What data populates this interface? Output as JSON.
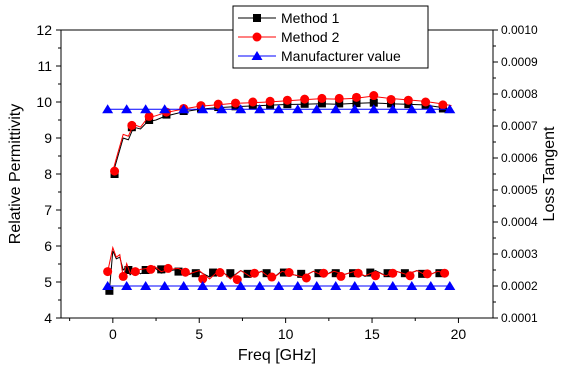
{
  "chart_data": {
    "type": "line",
    "xlabel": "Freq [GHz]",
    "ylabel": "Relative Permittivity",
    "y2label": "Loss Tangent",
    "xlim": [
      -3,
      22
    ],
    "ylim": [
      4,
      12
    ],
    "y2lim": [
      0.0001,
      0.001
    ],
    "x_ticks": [
      0,
      5,
      10,
      15,
      20
    ],
    "x_tick_labels": [
      "0",
      "5",
      "10",
      "15",
      "20"
    ],
    "y_ticks": [
      4,
      5,
      6,
      7,
      8,
      9,
      10,
      11,
      12
    ],
    "y_tick_labels": [
      "4",
      "5",
      "6",
      "7",
      "8",
      "9",
      "10",
      "11",
      "12"
    ],
    "y2_ticks": [
      0.0001,
      0.0002,
      0.0003,
      0.0004,
      0.0005,
      0.0006,
      0.0007,
      0.0008,
      0.0009,
      0.001
    ],
    "y2_tick_labels": [
      "0.0001",
      "0.0002",
      "0.0003",
      "0.0004",
      "0.0005",
      "0.0006",
      "0.0007",
      "0.0008",
      "0.0009",
      "0.0010"
    ],
    "legend_position": "top-right",
    "colors": {
      "method1": "#000000",
      "method2": "#ff0000",
      "manufacturer": "#0000ff"
    },
    "series": [
      {
        "name": "Method 1",
        "axis": "left",
        "color": "#000000",
        "marker": "square",
        "marker_x": [
          0.1,
          1.1,
          2.1,
          3.1,
          4.1,
          5.1,
          6.1,
          7.1,
          8.1,
          9.1,
          10.1,
          11.1,
          12.1,
          13.1,
          14.1,
          15.1,
          16.1,
          17.1,
          18.1,
          19.1
        ],
        "marker_y": [
          8.0,
          9.3,
          9.5,
          9.65,
          9.75,
          9.82,
          9.86,
          9.88,
          9.9,
          9.92,
          9.94,
          9.95,
          9.96,
          9.96,
          9.97,
          9.98,
          9.96,
          9.94,
          9.92,
          9.82
        ],
        "line_x": [
          0.0,
          0.3,
          0.6,
          0.9,
          1.2,
          1.6,
          2.0,
          2.5,
          3.0,
          4.0,
          5.0,
          6.0,
          7.0,
          8.0,
          9.0,
          10.0,
          11.0,
          12.0,
          13.0,
          14.0,
          15.0,
          16.0,
          17.0,
          18.0,
          19.0,
          19.6
        ],
        "line_y": [
          8.0,
          8.5,
          9.0,
          8.95,
          9.3,
          9.25,
          9.45,
          9.5,
          9.6,
          9.72,
          9.8,
          9.84,
          9.87,
          9.89,
          9.91,
          9.93,
          9.94,
          9.95,
          9.94,
          9.96,
          9.98,
          9.95,
          9.94,
          9.92,
          9.85,
          9.78
        ]
      },
      {
        "name": "Method 2",
        "axis": "left",
        "color": "#ff0000",
        "marker": "circle",
        "marker_x": [
          0.1,
          1.1,
          2.1,
          3.1,
          4.1,
          5.1,
          6.1,
          7.1,
          8.1,
          9.1,
          10.1,
          11.1,
          12.1,
          13.1,
          14.1,
          15.1,
          16.1,
          17.1,
          18.1,
          19.1
        ],
        "marker_y": [
          8.08,
          9.35,
          9.6,
          9.72,
          9.82,
          9.9,
          9.94,
          9.97,
          10.0,
          10.02,
          10.05,
          10.08,
          10.1,
          10.1,
          10.13,
          10.18,
          10.07,
          10.05,
          10.0,
          9.92
        ],
        "line_x": [
          0.0,
          0.3,
          0.6,
          0.9,
          1.2,
          1.6,
          2.0,
          2.5,
          3.0,
          4.0,
          5.0,
          6.0,
          7.0,
          8.0,
          9.0,
          10.0,
          11.0,
          12.0,
          13.0,
          14.0,
          15.0,
          16.0,
          17.0,
          18.0,
          19.0,
          19.6
        ],
        "line_y": [
          8.08,
          8.6,
          9.1,
          9.05,
          9.38,
          9.3,
          9.55,
          9.62,
          9.7,
          9.8,
          9.88,
          9.92,
          9.96,
          9.98,
          10.0,
          10.03,
          10.06,
          10.09,
          10.08,
          10.1,
          10.16,
          10.1,
          10.06,
          10.02,
          9.95,
          9.9
        ]
      },
      {
        "name": "Manufacturer value",
        "axis": "left",
        "color": "#0000ff",
        "marker": "triangle",
        "marker_x": [
          -0.3,
          0.8,
          1.9,
          3.0,
          4.1,
          5.2,
          6.3,
          7.4,
          8.5,
          9.6,
          10.7,
          11.8,
          12.9,
          14.0,
          15.1,
          16.2,
          17.3,
          18.4,
          19.5
        ],
        "marker_y": [
          9.8,
          9.8,
          9.8,
          9.8,
          9.8,
          9.8,
          9.8,
          9.8,
          9.8,
          9.8,
          9.8,
          9.8,
          9.8,
          9.8,
          9.8,
          9.8,
          9.8,
          9.8,
          9.8
        ],
        "line_x": [
          -0.3,
          19.6
        ],
        "line_y": [
          9.8,
          9.8
        ]
      },
      {
        "name": "Method 1",
        "axis": "right",
        "color": "#000000",
        "marker": "square",
        "marker_x": [
          -0.2,
          0.9,
          1.9,
          2.8,
          3.8,
          4.8,
          5.8,
          6.8,
          7.8,
          8.9,
          9.9,
          10.9,
          11.9,
          12.9,
          13.9,
          14.9,
          15.9,
          16.9,
          17.9,
          18.9
        ],
        "marker_y": [
          0.000185,
          0.00025,
          0.00025,
          0.000252,
          0.000245,
          0.00024,
          0.000242,
          0.00024,
          0.000238,
          0.00024,
          0.000242,
          0.000238,
          0.00024,
          0.00024,
          0.00024,
          0.000242,
          0.00024,
          0.00024,
          0.000238,
          0.00024
        ],
        "line_x": [
          -0.2,
          0.0,
          0.2,
          0.4,
          0.6,
          0.8,
          1.0,
          1.3,
          1.6,
          2.0,
          2.4,
          2.8,
          3.3,
          3.8,
          4.4,
          5.0,
          5.6,
          6.2,
          6.8,
          7.4,
          8.0,
          8.6,
          9.2,
          9.8,
          10.4,
          11.0,
          11.6,
          12.2,
          12.8,
          13.4,
          14.0,
          14.6,
          15.2,
          15.8,
          16.4,
          17.0,
          17.6,
          18.2,
          18.8,
          19.4
        ],
        "line_y": [
          0.000185,
          0.00031,
          0.000285,
          0.00029,
          0.00025,
          0.00026,
          0.000235,
          0.00025,
          0.000238,
          0.00025,
          0.000258,
          0.00024,
          0.000248,
          0.000252,
          0.000236,
          0.000245,
          0.000228,
          0.00025,
          0.000225,
          0.000248,
          0.000232,
          0.000246,
          0.000222,
          0.000248,
          0.000236,
          0.000228,
          0.000246,
          0.000232,
          0.000248,
          0.000236,
          0.000246,
          0.00023,
          0.000248,
          0.000232,
          0.000246,
          0.000236,
          0.000248,
          0.000232,
          0.000246,
          0.000236
        ]
      },
      {
        "name": "Method 2",
        "axis": "right",
        "color": "#ff0000",
        "marker": "circle",
        "marker_x": [
          -0.3,
          0.6,
          1.3,
          2.2,
          3.2,
          4.2,
          5.2,
          6.2,
          7.2,
          8.2,
          9.2,
          10.2,
          11.2,
          12.2,
          13.2,
          14.2,
          15.2,
          16.2,
          17.2,
          18.2,
          19.2
        ],
        "marker_y": [
          0.000245,
          0.00023,
          0.000245,
          0.000252,
          0.000255,
          0.000243,
          0.000222,
          0.000242,
          0.00022,
          0.00024,
          0.000228,
          0.000242,
          0.000225,
          0.00024,
          0.00023,
          0.00024,
          0.000232,
          0.00024,
          0.000232,
          0.000238,
          0.00024
        ],
        "line_x": [
          -0.3,
          0.0,
          0.2,
          0.4,
          0.6,
          0.8,
          1.0,
          1.3,
          1.6,
          2.0,
          2.4,
          2.8,
          3.3,
          3.8,
          4.4,
          5.0,
          5.6,
          6.2,
          6.8,
          7.4,
          8.0,
          8.6,
          9.2,
          9.8,
          10.4,
          11.0,
          11.6,
          12.2,
          12.8,
          13.4,
          14.0,
          14.6,
          15.2,
          15.8,
          16.4,
          17.0,
          17.6,
          18.2,
          18.8,
          19.4
        ],
        "line_y": [
          0.000245,
          0.00032,
          0.00029,
          0.000298,
          0.000228,
          0.00027,
          0.00024,
          0.000245,
          0.000252,
          0.000255,
          0.000262,
          0.000245,
          0.000252,
          0.000255,
          0.000238,
          0.000248,
          0.000222,
          0.000252,
          0.000222,
          0.000248,
          0.000228,
          0.000246,
          0.000222,
          0.000246,
          0.000236,
          0.000228,
          0.000246,
          0.000232,
          0.000246,
          0.000236,
          0.000246,
          0.000232,
          0.000246,
          0.000232,
          0.000246,
          0.000236,
          0.000248,
          0.000232,
          0.000246,
          0.000238
        ]
      },
      {
        "name": "Manufacturer value",
        "axis": "right",
        "color": "#0000ff",
        "marker": "triangle",
        "marker_x": [
          -0.3,
          0.8,
          1.9,
          3.0,
          4.1,
          5.2,
          6.3,
          7.4,
          8.5,
          9.6,
          10.7,
          11.8,
          12.9,
          14.0,
          15.1,
          16.2,
          17.3,
          18.4,
          19.5
        ],
        "marker_y": [
          0.0002,
          0.0002,
          0.0002,
          0.0002,
          0.0002,
          0.0002,
          0.0002,
          0.0002,
          0.0002,
          0.0002,
          0.0002,
          0.0002,
          0.0002,
          0.0002,
          0.0002,
          0.0002,
          0.0002,
          0.0002,
          0.0002
        ],
        "line_x": [
          -0.3,
          19.6
        ],
        "line_y": [
          0.0002,
          0.0002
        ]
      }
    ],
    "legend": [
      {
        "label": "Method 1",
        "marker": "square",
        "color": "#000000"
      },
      {
        "label": "Method 2",
        "marker": "circle",
        "color": "#ff0000"
      },
      {
        "label": "Manufacturer value",
        "marker": "triangle",
        "color": "#0000ff"
      }
    ]
  }
}
